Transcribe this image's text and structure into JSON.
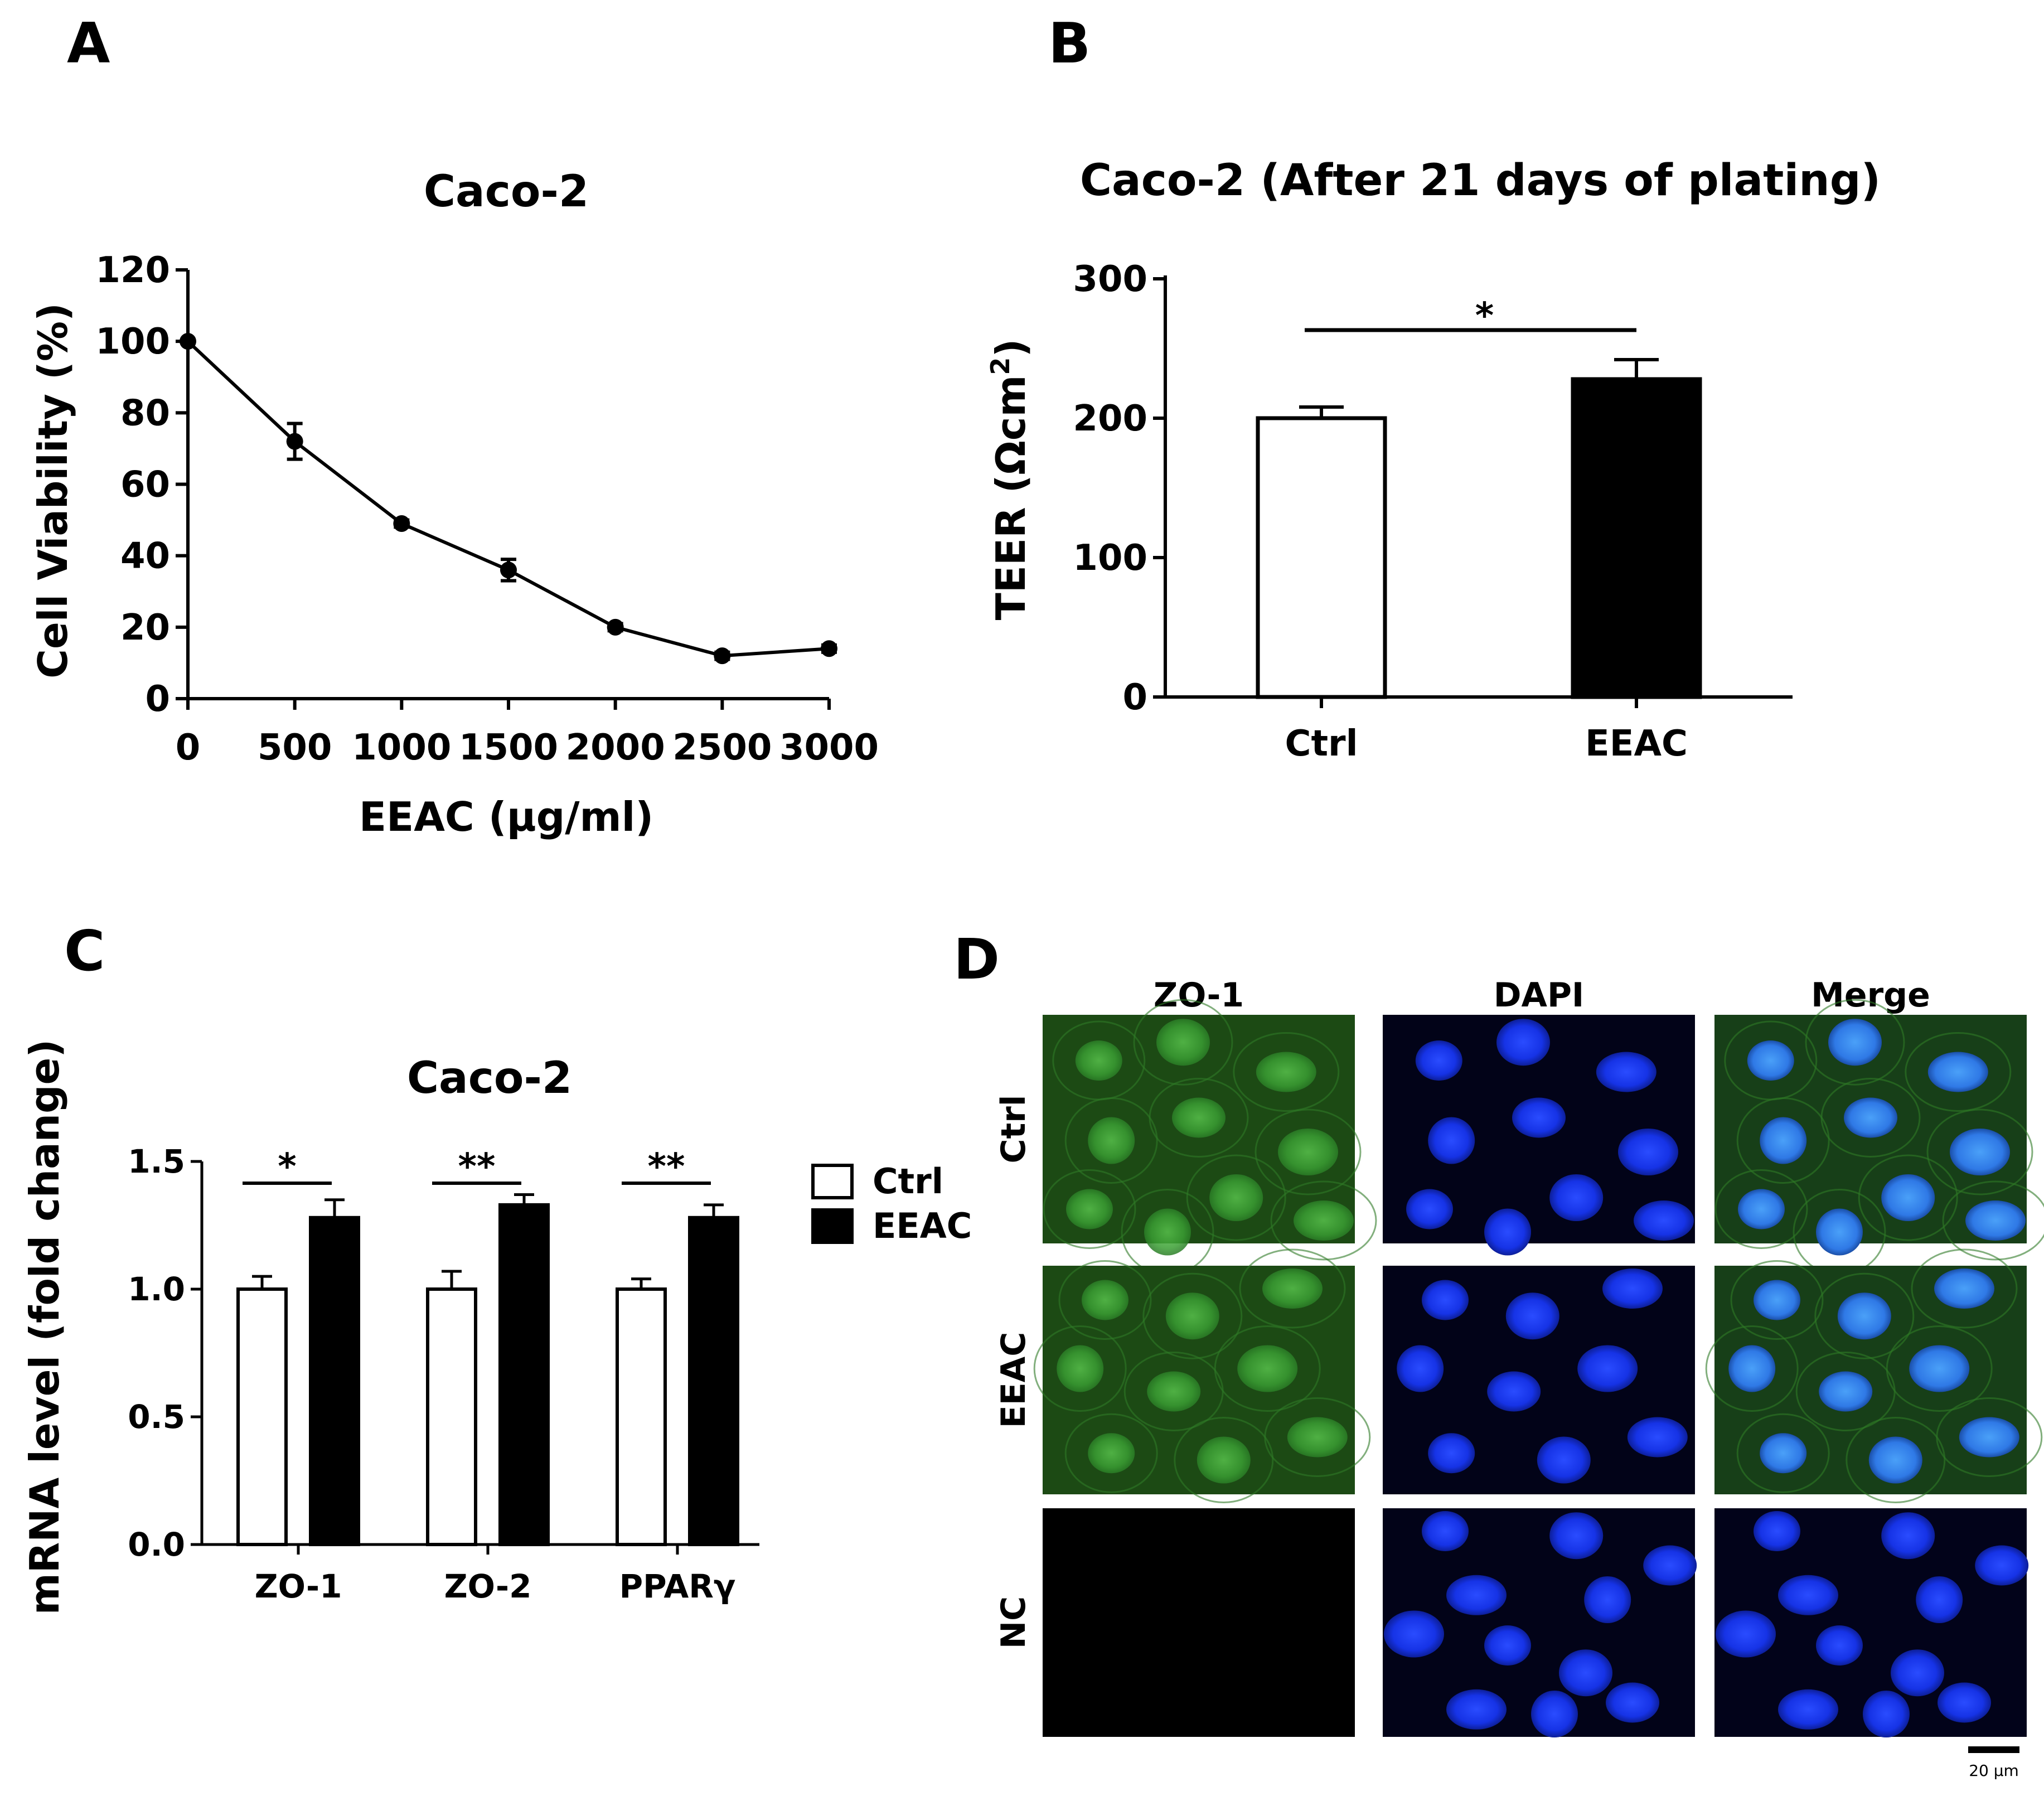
{
  "panels": {
    "a": {
      "letter": "A"
    },
    "b": {
      "letter": "B"
    },
    "c": {
      "letter": "C"
    },
    "d": {
      "letter": "D"
    }
  },
  "chart_data": [
    {
      "id": "A",
      "type": "line",
      "title": "Caco-2",
      "xlabel": "EEAC (μg/ml)",
      "ylabel": "Cell Viability (%)",
      "x": [
        0,
        500,
        1000,
        1500,
        2000,
        2500,
        3000
      ],
      "y": [
        100,
        72,
        49,
        36,
        20,
        12,
        14
      ],
      "error": [
        0,
        5,
        1,
        3,
        1,
        1,
        1
      ],
      "xticks": [
        0,
        500,
        1000,
        1500,
        2000,
        2500,
        3000
      ],
      "yticks": [
        0,
        20,
        40,
        60,
        80,
        100,
        120
      ],
      "xlim": [
        0,
        3000
      ],
      "ylim": [
        0,
        120
      ]
    },
    {
      "id": "B",
      "type": "bar",
      "title": "Caco-2 (After 21 days of plating)",
      "ylabel": "TEER (Ωcm",
      "ylabel_sup": "2",
      "ylabel_close": ")",
      "categories": [
        "Ctrl",
        "EEAC"
      ],
      "values": [
        200,
        228
      ],
      "error": [
        8,
        14
      ],
      "colors": [
        "#ffffff",
        "#000000"
      ],
      "yticks": [
        0,
        100,
        200,
        300
      ],
      "ylim": [
        0,
        300
      ],
      "significance": [
        {
          "from": 0,
          "to": 1,
          "label": "*"
        }
      ]
    },
    {
      "id": "C",
      "type": "bar",
      "title": "Caco-2",
      "ylabel": "mRNA level (fold change)",
      "categories": [
        "ZO-1",
        "ZO-2",
        "PPARγ"
      ],
      "series": [
        {
          "name": "Ctrl",
          "values": [
            1.0,
            1.0,
            1.0
          ],
          "error": [
            0.05,
            0.07,
            0.04
          ],
          "color": "#ffffff"
        },
        {
          "name": "EEAC",
          "values": [
            1.28,
            1.33,
            1.28
          ],
          "error": [
            0.07,
            0.04,
            0.05
          ],
          "color": "#000000"
        }
      ],
      "yticks": [
        "0.0",
        "0.5",
        "1.0",
        "1.5"
      ],
      "ylim": [
        0,
        1.5
      ],
      "significance": [
        "*",
        "**",
        "**"
      ],
      "legend_position": "right"
    }
  ],
  "microscopy": {
    "columns": [
      "ZO-1",
      "DAPI",
      "Merge"
    ],
    "rows": [
      "Ctrl",
      "EEAC",
      "NC"
    ],
    "scale_bar": "20 µm",
    "colors": {
      "zo1": "#3da23a",
      "dapi": "#1230e8",
      "merge_nucleus": "#3a7cf0"
    }
  }
}
